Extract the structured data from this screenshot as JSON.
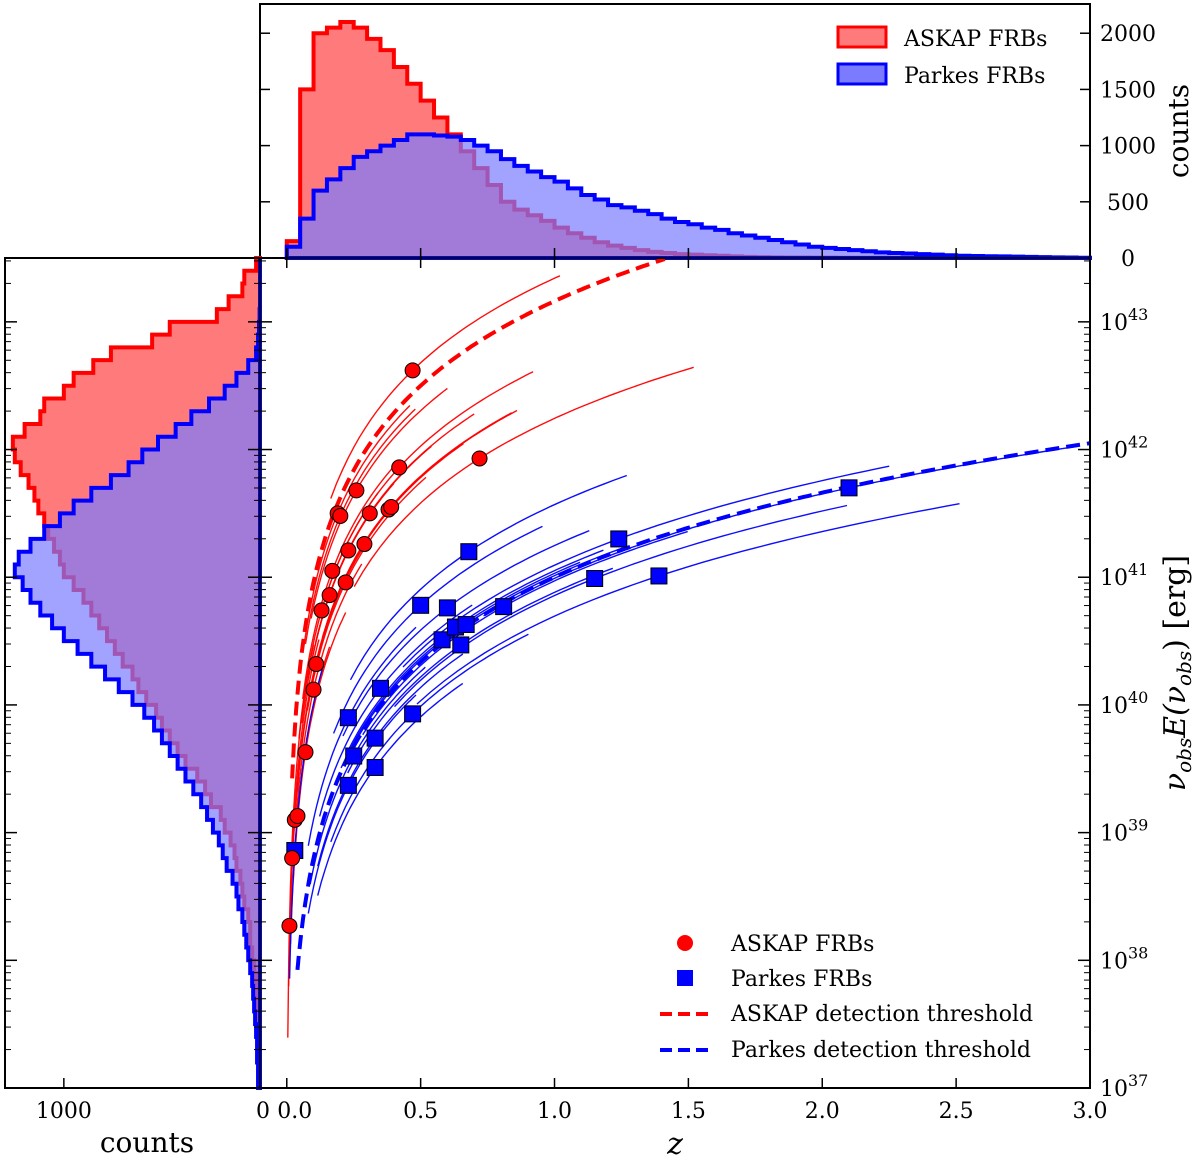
{
  "chart_data": [
    {
      "panel": "top",
      "type": "histogram",
      "xlabel": "",
      "ylabel": "counts",
      "xlim": [
        -0.1,
        3.0
      ],
      "ylim": [
        0,
        2260
      ],
      "yticks": [
        0,
        500,
        1000,
        1500,
        2000
      ],
      "yticklabels": [
        "0",
        "500",
        "1000",
        "1500",
        "2000"
      ],
      "bin_edges": [
        0.0,
        0.05,
        0.1,
        0.15,
        0.2,
        0.25,
        0.3,
        0.35,
        0.4,
        0.45,
        0.5,
        0.55,
        0.6,
        0.65,
        0.7,
        0.75,
        0.8,
        0.85,
        0.9,
        0.95,
        1.0,
        1.05,
        1.1,
        1.15,
        1.2,
        1.25,
        1.3,
        1.35,
        1.4,
        1.45,
        1.5,
        1.55,
        1.6,
        1.65,
        1.7,
        1.75,
        1.8,
        1.85,
        1.9,
        1.95,
        2.0,
        2.05,
        2.1,
        2.15,
        2.2,
        2.25,
        2.3,
        2.35,
        2.4,
        2.45,
        2.5,
        2.55,
        2.6,
        2.65,
        2.7,
        2.75,
        2.8,
        2.85,
        2.9,
        2.95,
        3.0
      ],
      "legend": {
        "position": "top-right",
        "entries": [
          "ASKAP FRBs",
          "Parkes FRBs"
        ]
      },
      "series": [
        {
          "name": "ASKAP FRBs",
          "color": "#ff0000",
          "fill": "#ff7b7b",
          "counts": [
            150,
            1500,
            2000,
            2050,
            2100,
            2050,
            1950,
            1850,
            1700,
            1550,
            1400,
            1250,
            1100,
            950,
            800,
            650,
            500,
            430,
            380,
            330,
            270,
            220,
            180,
            140,
            110,
            90,
            70,
            55,
            45,
            35,
            30,
            25,
            20,
            15,
            10,
            8,
            6,
            5,
            4,
            3,
            3,
            2,
            2,
            2,
            2,
            1,
            1,
            1,
            1,
            1,
            1,
            0,
            0,
            0,
            0,
            0,
            0,
            0,
            0,
            0
          ]
        },
        {
          "name": "Parkes FRBs",
          "color": "#0000ff",
          "fill": "#7b7bff",
          "counts": [
            100,
            350,
            600,
            700,
            800,
            900,
            950,
            1000,
            1050,
            1100,
            1100,
            1090,
            1080,
            1050,
            1000,
            950,
            880,
            820,
            770,
            720,
            680,
            620,
            560,
            520,
            470,
            450,
            420,
            390,
            350,
            320,
            300,
            270,
            250,
            220,
            200,
            180,
            160,
            140,
            120,
            100,
            90,
            80,
            70,
            60,
            50,
            45,
            40,
            35,
            30,
            25,
            20,
            18,
            16,
            14,
            12,
            10,
            8,
            6,
            4,
            2
          ]
        }
      ]
    },
    {
      "panel": "left",
      "type": "histogram",
      "orientation": "horizontal",
      "xlabel": "counts",
      "xticks": [
        1000
      ],
      "xticklabels": [
        "1000"
      ],
      "xlim_reversed": [
        1300,
        0
      ],
      "log_bin_edges": [
        37.0,
        37.1,
        37.2,
        37.3,
        37.4,
        37.5,
        37.6,
        37.7,
        37.8,
        37.9,
        38.0,
        38.1,
        38.2,
        38.3,
        38.4,
        38.5,
        38.6,
        38.7,
        38.8,
        38.9,
        39.0,
        39.1,
        39.2,
        39.3,
        39.4,
        39.5,
        39.6,
        39.7,
        39.8,
        39.9,
        40.0,
        40.1,
        40.2,
        40.3,
        40.4,
        40.5,
        40.6,
        40.7,
        40.8,
        40.9,
        41.0,
        41.1,
        41.2,
        41.3,
        41.4,
        41.5,
        41.6,
        41.7,
        41.8,
        41.9,
        42.0,
        42.1,
        42.2,
        42.3,
        42.4,
        42.5,
        42.6,
        42.7,
        42.8,
        42.9,
        43.0,
        43.1,
        43.2,
        43.3,
        43.4,
        43.5
      ],
      "series": [
        {
          "name": "ASKAP FRBs",
          "color": "#ff0000",
          "fill": "#ff7b7b",
          "counts": [
            5,
            5,
            5,
            5,
            10,
            15,
            15,
            20,
            20,
            30,
            40,
            50,
            50,
            60,
            80,
            90,
            100,
            120,
            130,
            150,
            180,
            200,
            250,
            280,
            320,
            380,
            420,
            460,
            500,
            530,
            580,
            620,
            650,
            700,
            740,
            780,
            820,
            860,
            900,
            950,
            1000,
            1020,
            1050,
            1080,
            1100,
            1130,
            1150,
            1180,
            1220,
            1250,
            1260,
            1200,
            1120,
            1100,
            1000,
            950,
            850,
            760,
            550,
            460,
            220,
            160,
            90,
            80,
            20
          ]
        },
        {
          "name": "Parkes FRBs",
          "color": "#0000ff",
          "fill": "#7b7bff",
          "counts": [
            10,
            10,
            15,
            15,
            20,
            25,
            30,
            35,
            40,
            50,
            60,
            70,
            80,
            90,
            110,
            120,
            140,
            170,
            190,
            210,
            240,
            270,
            300,
            340,
            380,
            420,
            460,
            500,
            540,
            590,
            650,
            720,
            790,
            860,
            930,
            1000,
            1060,
            1120,
            1170,
            1210,
            1250,
            1230,
            1170,
            1100,
            1020,
            950,
            860,
            760,
            670,
            600,
            520,
            430,
            350,
            260,
            180,
            120,
            60,
            20,
            10,
            5,
            2,
            0,
            0,
            0,
            0
          ]
        }
      ]
    },
    {
      "panel": "main",
      "type": "scatter",
      "xlabel": "z",
      "ylabel": "ν_obs E(ν_obs)  [erg]",
      "ylabel_main": "ν",
      "ylabel_sub1": "obs",
      "ylabel_mid": "E(ν",
      "ylabel_sub2": "obs",
      "ylabel_close": ")  [erg]",
      "xlim": [
        -0.1,
        3.0
      ],
      "ylim_log10": [
        37.0,
        43.5
      ],
      "xticks": [
        0.0,
        0.5,
        1.0,
        1.5,
        2.0,
        2.5,
        3.0
      ],
      "xticklabels": [
        "0.0",
        "0.5",
        "1.0",
        "1.5",
        "2.0",
        "2.5",
        "3.0"
      ],
      "yticks_log10": [
        37,
        38,
        39,
        40,
        41,
        42,
        43
      ],
      "ytick_base": "10",
      "ytick_exponents": [
        "37",
        "38",
        "39",
        "40",
        "41",
        "42",
        "43"
      ],
      "left_xtick_origin_label": "0",
      "legend": {
        "position": "bottom-right",
        "entries": [
          "ASKAP FRBs",
          "Parkes FRBs",
          "ASKAP detection threshold",
          "Parkes detection threshold"
        ]
      },
      "series": [
        {
          "name": "ASKAP FRBs",
          "marker": "circle",
          "color": "#ff0000",
          "points": [
            [
              0.01,
              38.27
            ],
            [
              0.02,
              38.8
            ],
            [
              0.03,
              39.1
            ],
            [
              0.04,
              39.13
            ],
            [
              0.07,
              39.63
            ],
            [
              0.1,
              40.12
            ],
            [
              0.11,
              40.32
            ],
            [
              0.13,
              40.74
            ],
            [
              0.16,
              40.86
            ],
            [
              0.17,
              41.05
            ],
            [
              0.19,
              41.5
            ],
            [
              0.2,
              41.48
            ],
            [
              0.22,
              40.96
            ],
            [
              0.23,
              41.21
            ],
            [
              0.26,
              41.68
            ],
            [
              0.29,
              41.26
            ],
            [
              0.31,
              41.5
            ],
            [
              0.38,
              41.53
            ],
            [
              0.39,
              41.55
            ],
            [
              0.42,
              41.86
            ],
            [
              0.47,
              42.62
            ],
            [
              0.72,
              41.93
            ]
          ]
        },
        {
          "name": "Parkes FRBs",
          "marker": "square",
          "color": "#0000ff",
          "points": [
            [
              0.03,
              38.86
            ],
            [
              0.23,
              39.37
            ],
            [
              0.23,
              39.9
            ],
            [
              0.25,
              39.6
            ],
            [
              0.33,
              39.51
            ],
            [
              0.33,
              39.74
            ],
            [
              0.35,
              40.13
            ],
            [
              0.47,
              39.93
            ],
            [
              0.5,
              40.78
            ],
            [
              0.58,
              40.51
            ],
            [
              0.6,
              40.76
            ],
            [
              0.63,
              40.61
            ],
            [
              0.65,
              40.47
            ],
            [
              0.67,
              40.63
            ],
            [
              0.68,
              41.2
            ],
            [
              0.81,
              40.77
            ],
            [
              1.15,
              40.99
            ],
            [
              1.24,
              41.3
            ],
            [
              1.39,
              41.01
            ],
            [
              2.1,
              41.7
            ]
          ]
        },
        {
          "name": "ASKAP detection threshold",
          "style": "dashed",
          "color": "#ff0000",
          "function": "log10(E) = 42.5 + 2.2*log10(z/0.5)",
          "z_range": [
            0.02,
            2.6
          ]
        },
        {
          "name": "Parkes detection threshold",
          "style": "dashed",
          "color": "#0000ff",
          "function": "log10(E) = 41.0 + 2.2*log10(z/1.0)",
          "z_range": [
            0.04,
            3.0
          ]
        }
      ]
    }
  ]
}
